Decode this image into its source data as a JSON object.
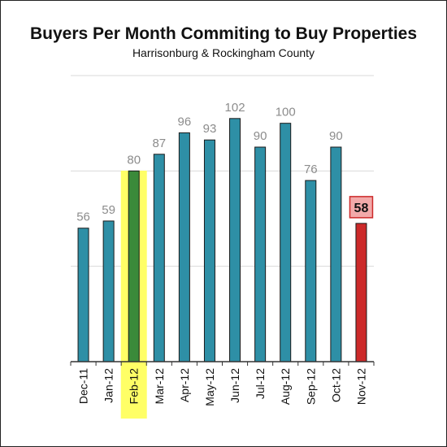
{
  "chart_data": {
    "type": "bar",
    "title": "Buyers Per Month Commiting to Buy Properties",
    "subtitle": "Harrisonburg & Rockingham County",
    "xlabel": "",
    "ylabel": "",
    "categories": [
      "Dec-11",
      "Jan-12",
      "Feb-12",
      "Mar-12",
      "Apr-12",
      "May-12",
      "Jun-12",
      "Jul-12",
      "Aug-12",
      "Sep-12",
      "Oct-12",
      "Nov-12"
    ],
    "values": [
      56,
      59,
      80,
      87,
      96,
      93,
      102,
      90,
      100,
      76,
      90,
      58
    ],
    "ylim": [
      0,
      120
    ],
    "gridlines": [
      40,
      80,
      120
    ],
    "highlight_category": "Feb-12",
    "latest_category": "Nov-12",
    "colors": {
      "bar": "#2e8fa6",
      "highlight_bar": "#3a8a3a",
      "highlight_band": "#ffff66",
      "latest_bar": "#cc2a2a",
      "latest_label_bg": "#f2aaaa",
      "latest_label_border": "#cc2a2a",
      "value_label": "#8c8c8c",
      "grid": "#d9d9d9",
      "axis": "#333333"
    },
    "grid": true,
    "legend": "none"
  }
}
